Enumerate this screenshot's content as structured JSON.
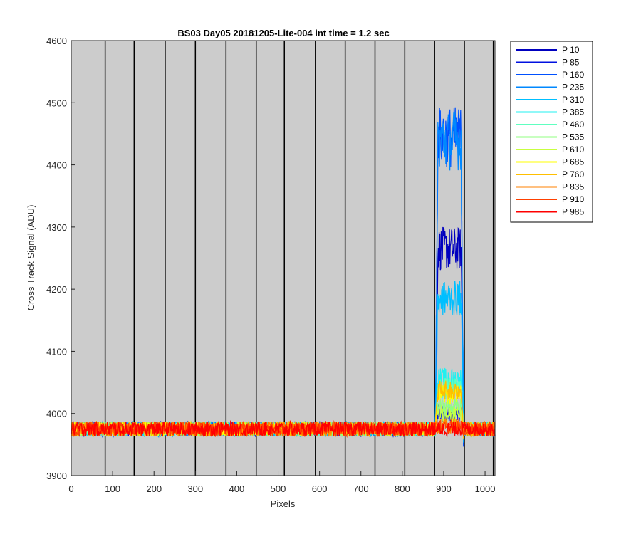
{
  "chart_data": {
    "type": "line",
    "title": "BS03 Day05 20181205-Lite-004 int time = 1.2 sec",
    "xlabel": "Pixels",
    "ylabel": "Cross Track Signal (ADU)",
    "xlim": [
      0,
      1024
    ],
    "ylim": [
      3900,
      4600
    ],
    "xticks": [
      0,
      100,
      200,
      300,
      400,
      500,
      600,
      700,
      800,
      900,
      1000
    ],
    "yticks": [
      3900,
      4000,
      4100,
      4200,
      4300,
      4400,
      4500,
      4600
    ],
    "background": "#cccccc",
    "vertical_lines_x": [
      82,
      152,
      227,
      300,
      374,
      447,
      515,
      590,
      662,
      734,
      806,
      878,
      950,
      1020
    ],
    "baseline": 3975,
    "noise_amplitude": 12,
    "bump_x_range": [
      880,
      948
    ],
    "legend_position": "outside-right",
    "series": [
      {
        "name": "P 10",
        "color": "#0000bf",
        "bump_level": 4265
      },
      {
        "name": "P 85",
        "color": "#0011e0",
        "bump_level": 4000
      },
      {
        "name": "P 160",
        "color": "#0050ff",
        "bump_level": 4445
      },
      {
        "name": "P 235",
        "color": "#0088ff",
        "bump_level": 4440
      },
      {
        "name": "P 310",
        "color": "#00bfff",
        "bump_level": 4185
      },
      {
        "name": "P 385",
        "color": "#20f0f0",
        "bump_level": 4055
      },
      {
        "name": "P 460",
        "color": "#60ffc0",
        "bump_level": 4040
      },
      {
        "name": "P 535",
        "color": "#90ff80",
        "bump_level": 4010
      },
      {
        "name": "P 610",
        "color": "#c8ff40",
        "bump_level": 4000
      },
      {
        "name": "P 685",
        "color": "#ffff00",
        "bump_level": 4030
      },
      {
        "name": "P 760",
        "color": "#ffbf00",
        "bump_level": 4038
      },
      {
        "name": "P 835",
        "color": "#ff8000",
        "bump_level": 3980
      },
      {
        "name": "P 910",
        "color": "#ff4000",
        "bump_level": 3978
      },
      {
        "name": "P 985",
        "color": "#ff0000",
        "bump_level": 3975
      }
    ]
  }
}
